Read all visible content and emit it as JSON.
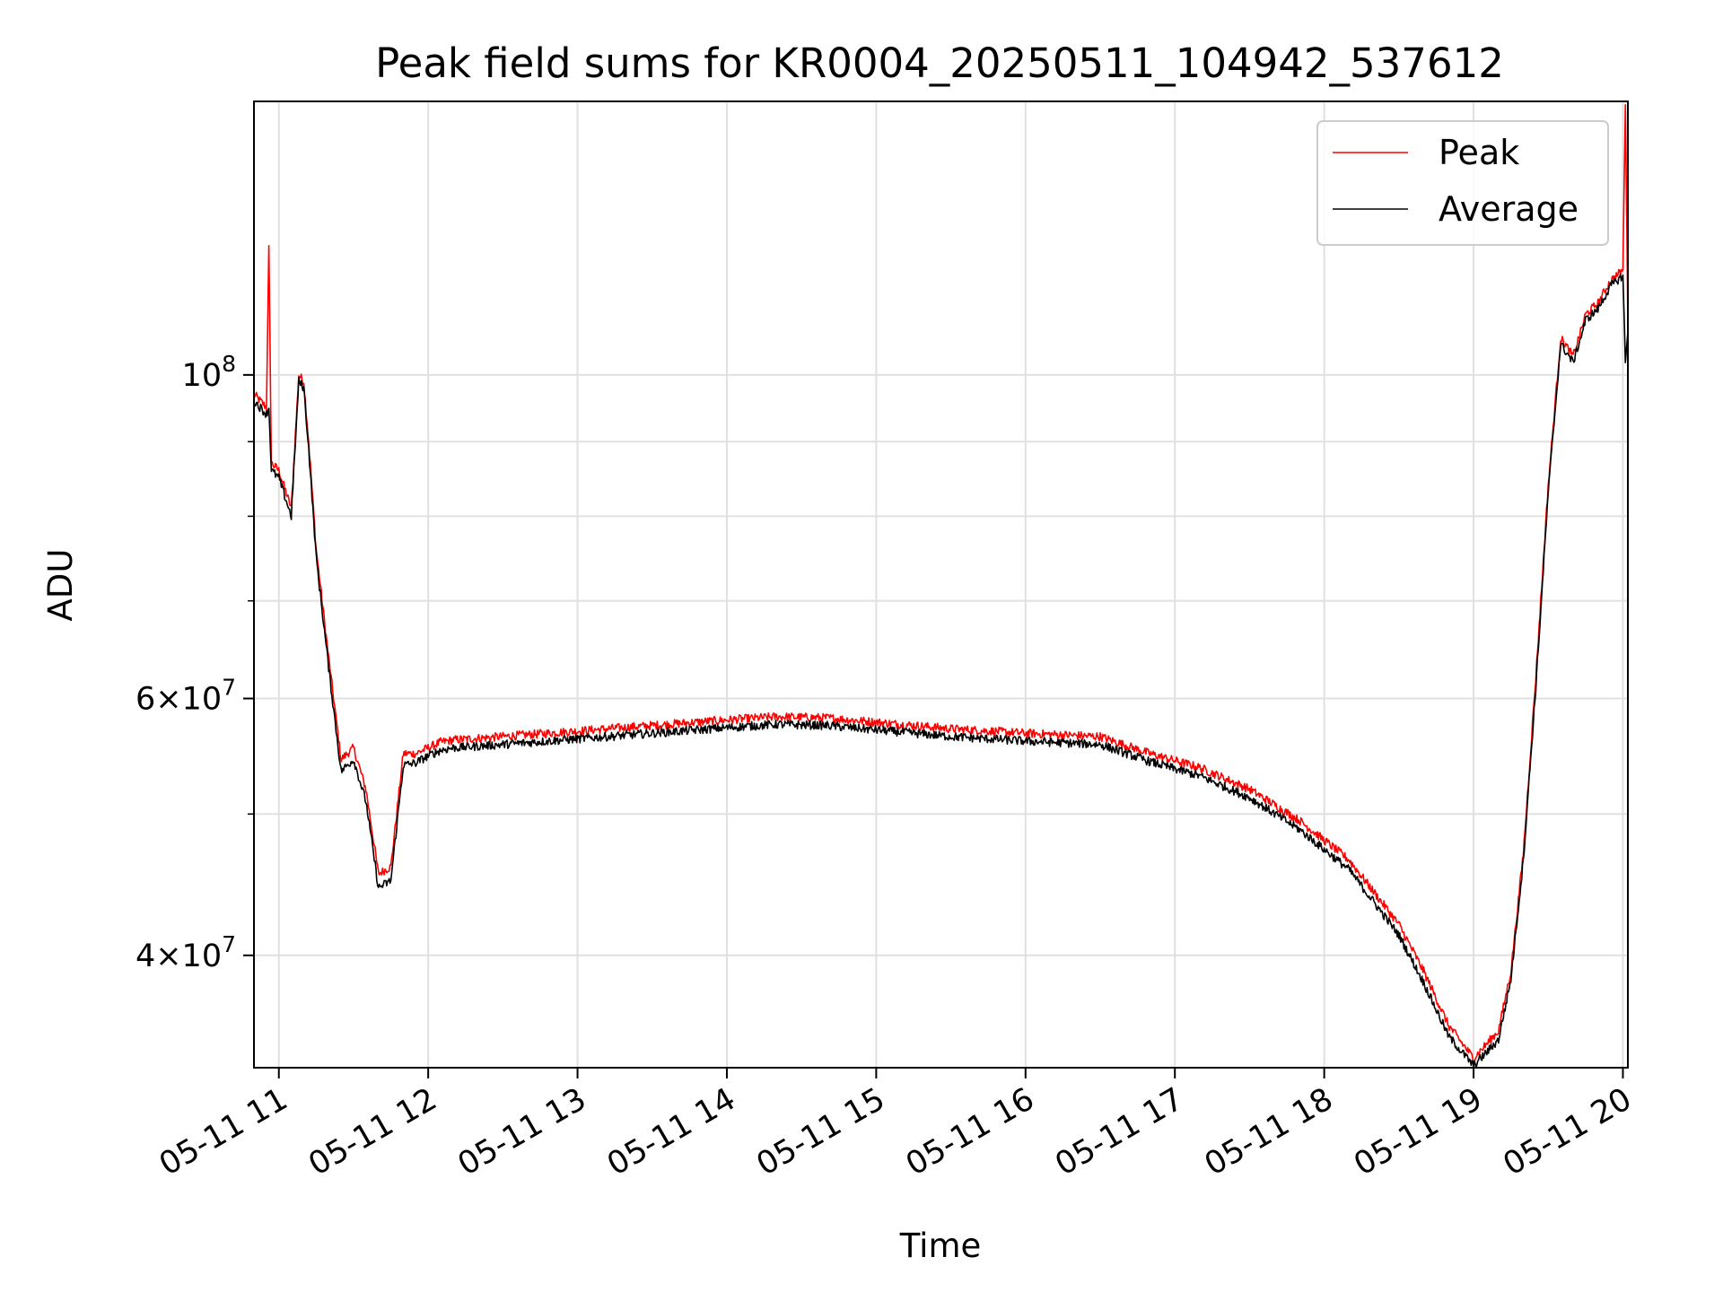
{
  "chart_data": {
    "type": "line",
    "title": "Peak field sums for KR0004_20250511_104942_537612",
    "xlabel": "Time",
    "ylabel": "ADU",
    "yscale": "log",
    "xlim": [
      "05-11 10:50",
      "05-11 20:02"
    ],
    "ylim": [
      33500000,
      154000000
    ],
    "grid": true,
    "legend_position": "top-right",
    "x_ticks": [
      "05-11 11",
      "05-11 12",
      "05-11 13",
      "05-11 14",
      "05-11 15",
      "05-11 16",
      "05-11 17",
      "05-11 18",
      "05-11 19",
      "05-11 20"
    ],
    "y_ticks": [
      {
        "value": 100000000,
        "base": "10",
        "exp": "8",
        "mantissa": ""
      },
      {
        "value": 60000000,
        "base": "10",
        "exp": "7",
        "mantissa": "6"
      },
      {
        "value": 40000000,
        "base": "10",
        "exp": "7",
        "mantissa": "4"
      }
    ],
    "y_minor_ticks": [
      90000000,
      80000000,
      70000000,
      50000000
    ],
    "series": [
      {
        "name": "Peak",
        "color": "#ff0000",
        "x": [
          "05-11 10:50",
          "05-11 10:55",
          "05-11 10:56",
          "05-11 10:57",
          "05-11 11:00",
          "05-11 11:05",
          "05-11 11:08",
          "05-11 11:10",
          "05-11 11:12",
          "05-11 11:15",
          "05-11 11:20",
          "05-11 11:25",
          "05-11 11:30",
          "05-11 11:35",
          "05-11 11:40",
          "05-11 11:45",
          "05-11 11:50",
          "05-11 11:55",
          "05-11 12:00",
          "05-11 12:05",
          "05-11 12:10",
          "05-11 12:30",
          "05-11 13:00",
          "05-11 13:30",
          "05-11 14:00",
          "05-11 14:20",
          "05-11 14:40",
          "05-11 15:00",
          "05-11 15:30",
          "05-11 16:00",
          "05-11 16:30",
          "05-11 16:50",
          "05-11 17:10",
          "05-11 17:30",
          "05-11 17:50",
          "05-11 18:10",
          "05-11 18:30",
          "05-11 18:40",
          "05-11 18:50",
          "05-11 19:00",
          "05-11 19:10",
          "05-11 19:15",
          "05-11 19:20",
          "05-11 19:25",
          "05-11 19:30",
          "05-11 19:35",
          "05-11 19:40",
          "05-11 19:43",
          "05-11 19:45",
          "05-11 19:50",
          "05-11 19:55",
          "05-11 20:00",
          "05-11 20:01",
          "05-11 20:02"
        ],
        "values": [
          97000000,
          95000000,
          122000000,
          87000000,
          86000000,
          81000000,
          100000000,
          99000000,
          90000000,
          76000000,
          64000000,
          54500000,
          55500000,
          52000000,
          45500000,
          46000000,
          55000000,
          55000000,
          55500000,
          56000000,
          56200000,
          56500000,
          57000000,
          57500000,
          58000000,
          58300000,
          58200000,
          57800000,
          57200000,
          56800000,
          56500000,
          55000000,
          53800000,
          52000000,
          49500000,
          46500000,
          42000000,
          39000000,
          35800000,
          34000000,
          35500000,
          39000000,
          47000000,
          62000000,
          84000000,
          106000000,
          103000000,
          107000000,
          110000000,
          112000000,
          116000000,
          118000000,
          154000000,
          108000000
        ]
      },
      {
        "name": "Average",
        "color": "#000000",
        "x": [
          "05-11 10:50",
          "05-11 10:55",
          "05-11 10:56",
          "05-11 10:57",
          "05-11 11:00",
          "05-11 11:05",
          "05-11 11:08",
          "05-11 11:10",
          "05-11 11:12",
          "05-11 11:15",
          "05-11 11:20",
          "05-11 11:25",
          "05-11 11:30",
          "05-11 11:35",
          "05-11 11:40",
          "05-11 11:45",
          "05-11 11:50",
          "05-11 11:55",
          "05-11 12:00",
          "05-11 12:05",
          "05-11 12:10",
          "05-11 12:30",
          "05-11 13:00",
          "05-11 13:30",
          "05-11 14:00",
          "05-11 14:20",
          "05-11 14:40",
          "05-11 15:00",
          "05-11 15:30",
          "05-11 16:00",
          "05-11 16:30",
          "05-11 16:50",
          "05-11 17:10",
          "05-11 17:30",
          "05-11 17:50",
          "05-11 18:10",
          "05-11 18:30",
          "05-11 18:40",
          "05-11 18:50",
          "05-11 19:00",
          "05-11 19:10",
          "05-11 19:15",
          "05-11 19:20",
          "05-11 19:25",
          "05-11 19:30",
          "05-11 19:35",
          "05-11 19:40",
          "05-11 19:43",
          "05-11 19:45",
          "05-11 19:50",
          "05-11 19:55",
          "05-11 20:00",
          "05-11 20:01",
          "05-11 20:02"
        ],
        "values": [
          96000000,
          94000000,
          95000000,
          86000000,
          85000000,
          80000000,
          99000000,
          98000000,
          89000000,
          75000000,
          63000000,
          53500000,
          54500000,
          51000000,
          44500000,
          45000000,
          54000000,
          54200000,
          54800000,
          55300000,
          55500000,
          55800000,
          56300000,
          56800000,
          57300000,
          57600000,
          57500000,
          57100000,
          56500000,
          56100000,
          55800000,
          54300000,
          53100000,
          51300000,
          48800000,
          45800000,
          41300000,
          38300000,
          35200000,
          33600000,
          35000000,
          38500000,
          46500000,
          61000000,
          83000000,
          105000000,
          102000000,
          106000000,
          109000000,
          111000000,
          115000000,
          117000000,
          102000000,
          107000000
        ]
      }
    ]
  }
}
